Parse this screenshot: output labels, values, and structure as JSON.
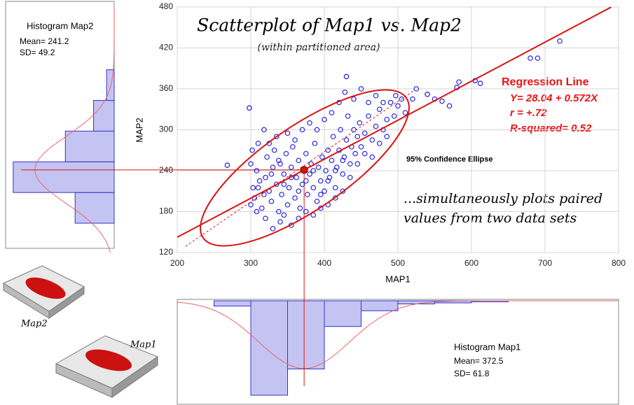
{
  "chart_data": [
    {
      "type": "scatter",
      "title": "Scatterplot of Map1 vs. Map2",
      "subtitle": "(within partitioned area)",
      "x_label": "MAP1",
      "y_label": "MAP2",
      "color": "#2222dd",
      "xlim": [
        200,
        800
      ],
      "xticks": [
        200,
        300,
        400,
        500,
        600,
        700,
        800
      ],
      "ylim": [
        120,
        480
      ],
      "yticks": [
        120,
        180,
        240,
        300,
        360,
        420,
        480
      ],
      "grid": true,
      "x": [
        300,
        305,
        310,
        315,
        320,
        322,
        325,
        328,
        330,
        332,
        335,
        338,
        340,
        342,
        345,
        348,
        350,
        352,
        355,
        357,
        360,
        362,
        365,
        367,
        370,
        372,
        375,
        377,
        380,
        382,
        385,
        387,
        390,
        392,
        395,
        397,
        400,
        402,
        405,
        407,
        410,
        412,
        415,
        417,
        420,
        422,
        425,
        427,
        430,
        432,
        435,
        437,
        440,
        442,
        445,
        448,
        450,
        455,
        460,
        465,
        470,
        475,
        480,
        485,
        490,
        495,
        500,
        505,
        510,
        520,
        298,
        268,
        302,
        320,
        330,
        340,
        310,
        318,
        335,
        345,
        355,
        365,
        375,
        385,
        395,
        405,
        415,
        425,
        300,
        308,
        312,
        325,
        350,
        360,
        370,
        380,
        390,
        400,
        410,
        420,
        430,
        428,
        440,
        450,
        460,
        470,
        480,
        497,
        540,
        560,
        580,
        583,
        605,
        612,
        680,
        690,
        720,
        525,
        550,
        570,
        345,
        355,
        365,
        375,
        385,
        395,
        405,
        415,
        425,
        435,
        445,
        455,
        465,
        475,
        485,
        338,
        328,
        318,
        308,
        303
      ],
      "values": [
        190,
        200,
        215,
        185,
        230,
        260,
        210,
        195,
        245,
        270,
        220,
        180,
        250,
        205,
        235,
        265,
        190,
        215,
        245,
        275,
        200,
        230,
        255,
        185,
        220,
        240,
        265,
        205,
        235,
        250,
        215,
        280,
        195,
        245,
        225,
        260,
        210,
        240,
        270,
        230,
        255,
        290,
        215,
        245,
        270,
        300,
        235,
        260,
        285,
        320,
        250,
        275,
        300,
        265,
        290,
        310,
        275,
        295,
        320,
        285,
        305,
        330,
        300,
        315,
        340,
        320,
        335,
        345,
        325,
        345,
        332,
        248,
        270,
        170,
        155,
        165,
        280,
        300,
        290,
        175,
        160,
        170,
        180,
        175,
        185,
        190,
        200,
        210,
        250,
        240,
        225,
        280,
        295,
        285,
        300,
        310,
        300,
        315,
        325,
        340,
        378,
        355,
        345,
        360,
        340,
        350,
        340,
        350,
        352,
        342,
        362,
        370,
        372,
        368,
        405,
        405,
        430,
        360,
        345,
        335,
        220,
        230,
        210,
        225,
        240,
        205,
        225,
        240,
        255,
        230,
        250,
        265,
        260,
        280,
        290,
        255,
        235,
        205,
        180,
        215
      ],
      "mean_point": [
        372.5,
        241.2
      ],
      "mark_color": "#dd1111",
      "regression": {
        "label": "Regression Line",
        "equation": "Y= 28.04 + 0.572X",
        "r": "r = +.72",
        "r_squared": "R-squared= 0.52",
        "x": [
          200,
          790
        ],
        "y": [
          142.4,
          479.9
        ]
      },
      "major_axis_line": {
        "x": [
          211.4,
          521
        ],
        "y": [
          129.2,
          356.9
        ]
      },
      "ellipse": {
        "label": "95% Confidence Ellipse",
        "major": [
          [
            235.2,
            141.5
          ],
          [
            511.4,
            346.7
          ]
        ],
        "minor": [
          [
            404.8,
            190.8
          ],
          [
            340,
            291.3
          ]
        ]
      },
      "annotation": [
        "...simultaneously plots paired",
        "values from two data sets"
      ]
    },
    {
      "type": "histogram",
      "orientation": "horizontal",
      "title": "Histogram Map2",
      "stats": {
        "mean": 241.2,
        "mean_label": "Mean= 241.2",
        "sd": 49.2,
        "sd_label": "SD= 49.2"
      },
      "bins": [
        163,
        208,
        253,
        298,
        343,
        388
      ],
      "values": [
        72,
        186,
        90,
        38,
        14
      ],
      "ylim": [
        120,
        480
      ],
      "xlim": [
        0,
        200
      ],
      "color": "#c4c4f2",
      "edge_color": "#3333cc",
      "curve_color": "#ee6666",
      "image_label": "Map2"
    },
    {
      "type": "histogram",
      "orientation": "vertical",
      "title": "Histogram Map1",
      "stats": {
        "mean": 372.5,
        "mean_label": "Mean= 372.5",
        "sd": 61.8,
        "sd_label": "SD= 61.8"
      },
      "bins": [
        250,
        300,
        350,
        400,
        450,
        500,
        550,
        600,
        650
      ],
      "values": [
        10,
        180,
        130,
        49,
        19,
        6,
        4,
        2
      ],
      "xlim": [
        200,
        800
      ],
      "ylim": [
        0,
        200
      ],
      "color": "#c4c4f2",
      "edge_color": "#3333cc",
      "curve_color": "#ee6666",
      "image_label": "Map1"
    }
  ]
}
